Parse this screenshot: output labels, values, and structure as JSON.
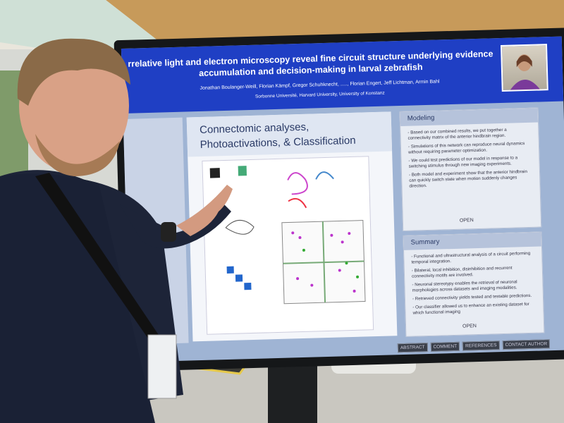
{
  "poster": {
    "title": "rrelative light and electron microscopy reveal fine circuit structure underlying evidence accumulation and decision-making in larval zebrafish",
    "authors": "Jonathan Boulanger-Weill, Florian Kämpf, Gregor Schuhknecht, ....., Florian Engert, Jeff Lichtman, Armin Bahl",
    "affiliations": "Sorbonne Université, Harvard University, University of Konstanz",
    "center_panel": {
      "heading": "Connectomic analyses, Photoactivations, & Classification"
    },
    "modeling": {
      "heading": "Modeling",
      "bullets": [
        "- Based on our combined results, we put together a connectivity matrix of the anterior hindbrain region.",
        "- Simulations of this network can reproduce neural dynamics without requiring parameter optimization.",
        "- We could test predictions of our model in response to a switching stimulus through new imaging experiments.",
        "- Both model and experiment show that the anterior hindbrain can quickly switch state when motion suddenly changes direction."
      ],
      "button": "OPEN"
    },
    "summary": {
      "heading": "Summary",
      "bullets": [
        "- Functional and ultrastructural analysis of a circuit performing temporal integration.",
        "- Bilateral, local inhibition, disinhibition and recurrent connectivity motifs are involved.",
        "- Neuronal stereotypy enables the retrieval of neuronal morphologies across datasets and imaging modalities.",
        "- Retrieved connectivity yields tested and testable predictions.",
        "- Our classifier allowed us to enhance an existing dataset for which functional imaging"
      ],
      "button": "OPEN"
    },
    "buttons": [
      "ABSTRACT",
      "COMMENT",
      "REFERENCES",
      "CONTACT AUTHOR"
    ]
  }
}
